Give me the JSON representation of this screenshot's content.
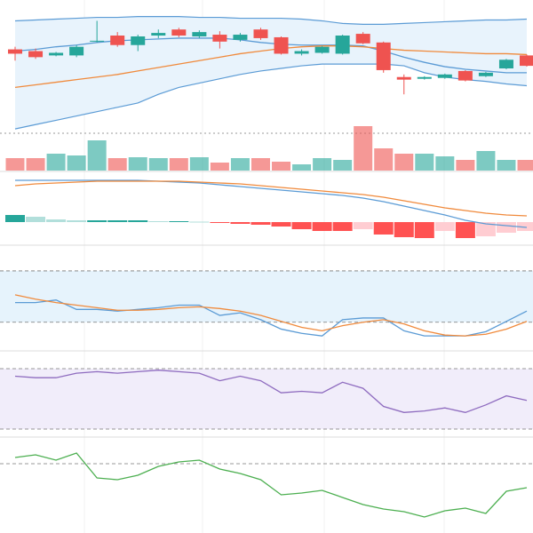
{
  "chart_data": [
    {
      "type": "candlestick",
      "ylim": [
        0,
        150
      ],
      "up_color": "#26a69a",
      "down_color": "#ef5350",
      "open": [
        97,
        95,
        90,
        90,
        106,
        113,
        102,
        113,
        120,
        112,
        114,
        108,
        120,
        111,
        92,
        93,
        92,
        115,
        105,
        65,
        63,
        64,
        72,
        66,
        75,
        90
      ],
      "high": [
        100,
        98,
        94,
        102,
        130,
        117,
        114,
        120,
        122,
        119,
        118,
        116,
        122,
        112,
        97,
        101,
        114,
        117,
        106,
        68,
        66,
        69,
        73,
        71,
        86,
        91
      ],
      "low": [
        84,
        86,
        89,
        88,
        105,
        100,
        95,
        110,
        111,
        110,
        98,
        106,
        108,
        91,
        90,
        92,
        91,
        103,
        70,
        45,
        62,
        63,
        60,
        65,
        74,
        77
      ],
      "close": [
        92,
        88,
        93,
        100,
        107,
        102,
        112,
        116,
        113,
        117,
        106,
        114,
        110,
        92,
        95,
        100,
        113,
        104,
        73,
        62,
        65,
        68,
        61,
        70,
        85,
        78
      ],
      "band": {
        "color": "#5b9bd5",
        "fill": "#e8f3fc",
        "upper": [
          130,
          131,
          132,
          133,
          134,
          134,
          135,
          135,
          135,
          134,
          134,
          133,
          133,
          133,
          132,
          130,
          127,
          126,
          126,
          127,
          128,
          129,
          130,
          131,
          131,
          132
        ],
        "lower": [
          5,
          10,
          15,
          20,
          25,
          30,
          35,
          45,
          53,
          58,
          63,
          68,
          72,
          75,
          78,
          80,
          80,
          80,
          80,
          78,
          70,
          65,
          62,
          60,
          57,
          55
        ]
      },
      "series": [
        {
          "color": "#5b9bd5",
          "values": [
            95,
            97,
            100,
            102,
            105,
            107,
            108,
            109,
            110,
            110,
            110,
            108,
            105,
            103,
            102,
            102,
            102,
            101,
            95,
            88,
            82,
            77,
            74,
            72,
            70,
            70
          ]
        },
        {
          "color": "#f08a3c",
          "values": [
            53,
            56,
            59,
            62,
            65,
            68,
            72,
            76,
            80,
            84,
            88,
            92,
            95,
            98,
            100,
            101,
            101,
            100,
            98,
            96,
            95,
            94,
            93,
            92,
            92,
            91
          ]
        }
      ]
    },
    {
      "type": "volume",
      "ylim": [
        0,
        50
      ],
      "values": [
        14,
        14,
        19,
        17,
        34,
        14,
        15,
        14,
        14,
        15,
        9,
        14,
        14,
        10,
        7,
        14,
        12,
        50,
        25,
        19,
        19,
        16,
        12,
        22,
        12,
        12
      ]
    },
    {
      "type": "macd",
      "ylim": [
        -25,
        55
      ],
      "up_color": "#26a69a",
      "up_light": "#b2dfdb",
      "down_color": "#ff5252",
      "down_light": "#ffcdd2",
      "histogram": [
        8,
        6,
        3,
        2,
        2,
        2,
        2,
        1,
        1,
        0.5,
        -1,
        -2,
        -3,
        -5,
        -8,
        -10,
        -10,
        -8,
        -14,
        -17,
        -18,
        -10,
        -18,
        -16,
        -12,
        -10
      ],
      "series": [
        {
          "color": "#5b9bd5",
          "values": [
            47,
            47,
            47,
            47,
            47,
            47,
            47,
            46,
            45,
            44,
            42,
            40,
            38,
            36,
            34,
            32,
            30,
            27,
            23,
            18,
            13,
            8,
            2,
            -2,
            -4,
            -6
          ]
        },
        {
          "color": "#f08a3c",
          "values": [
            41,
            43,
            44,
            45,
            46,
            46,
            46,
            46,
            46,
            45,
            44,
            43,
            41,
            39,
            37,
            35,
            33,
            31,
            28,
            24,
            20,
            16,
            13,
            10,
            8,
            7
          ]
        }
      ]
    },
    {
      "type": "line",
      "ylim": [
        0,
        100
      ],
      "levels": [
        80,
        20
      ],
      "level_fill": "#e6f3fc",
      "series": [
        {
          "color": "#5b9bd5",
          "values": [
            43,
            43,
            46,
            35,
            35,
            33,
            35,
            37,
            40,
            40,
            28,
            31,
            23,
            12,
            7,
            4,
            23,
            25,
            25,
            10,
            4,
            4,
            4,
            9,
            21,
            33
          ]
        },
        {
          "color": "#f08a3c",
          "values": [
            52,
            47,
            43,
            40,
            37,
            34,
            34,
            35,
            37,
            38,
            36,
            33,
            28,
            21,
            14,
            10,
            16,
            20,
            23,
            18,
            10,
            5,
            4,
            6,
            12,
            21
          ]
        }
      ]
    },
    {
      "type": "line",
      "ylim": [
        25,
        75
      ],
      "levels": [
        70,
        30
      ],
      "level_fill": "#f1edfa",
      "series": [
        {
          "color": "#8e6bbf",
          "values": [
            65,
            64,
            64,
            67,
            68,
            67,
            68,
            69,
            68,
            67,
            62,
            65,
            62,
            54,
            55,
            54,
            61,
            57,
            45,
            41,
            42,
            44,
            41,
            46,
            52,
            49
          ]
        }
      ]
    },
    {
      "type": "line",
      "ylim": [
        0,
        100
      ],
      "levels": [
        78
      ],
      "series": [
        {
          "color": "#4caf50",
          "values": [
            85,
            88,
            82,
            90,
            62,
            60,
            65,
            75,
            80,
            82,
            72,
            67,
            60,
            43,
            45,
            48,
            40,
            32,
            27,
            24,
            18,
            25,
            28,
            22,
            47,
            51
          ]
        }
      ]
    }
  ]
}
